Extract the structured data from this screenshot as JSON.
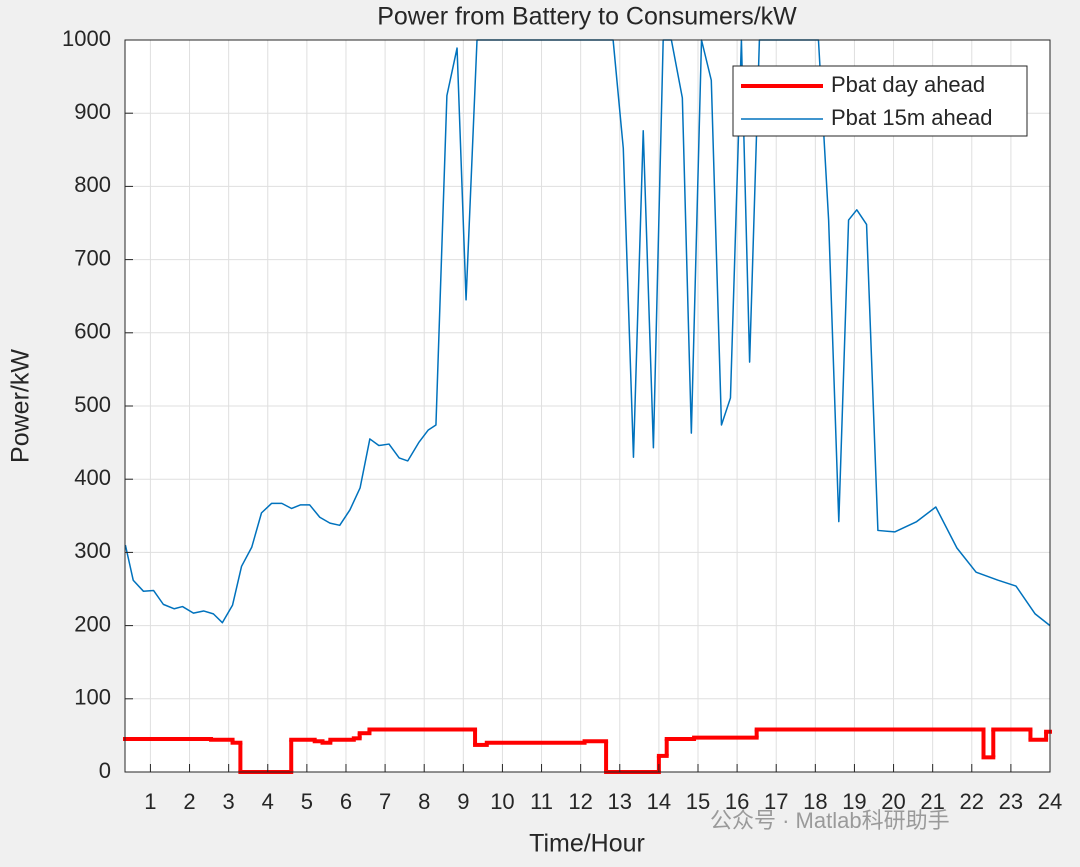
{
  "chart_data": {
    "type": "line",
    "title": "Power from Battery to Consumers/kW",
    "x_label": "Time/Hour",
    "y_label": "Power/kW",
    "annotation": "公众号 · Matlab科研助手",
    "xlim": [
      0.35,
      24
    ],
    "ylim": [
      0,
      1000
    ],
    "xticks": [
      1,
      2,
      3,
      4,
      5,
      6,
      7,
      8,
      9,
      10,
      11,
      12,
      13,
      14,
      15,
      16,
      17,
      18,
      19,
      20,
      21,
      22,
      23,
      24
    ],
    "yticks": [
      0,
      100,
      200,
      300,
      400,
      500,
      600,
      700,
      800,
      900,
      1000
    ],
    "grid": true,
    "legend": "top-right",
    "series": [
      {
        "name": "Pbat day ahead",
        "color": "#ff0000",
        "step": true,
        "x": [
          0.35,
          2.55,
          3.1,
          3.3,
          4.6,
          5.2,
          5.4,
          5.6,
          6.2,
          6.35,
          6.6,
          9.3,
          9.6,
          12.1,
          12.65,
          14.0,
          14.2,
          14.9,
          16.5,
          22.3,
          22.55,
          23.5,
          23.9
        ],
        "values": [
          45,
          44,
          40,
          0,
          44,
          42,
          40,
          44,
          46,
          53,
          58,
          37,
          40,
          42,
          0,
          22,
          45,
          47,
          58,
          20,
          58,
          44,
          55
        ]
      },
      {
        "name": "Pbat 15m ahead",
        "color": "#0072bd",
        "x": [
          0.36,
          0.56,
          0.82,
          1.08,
          1.33,
          1.61,
          1.82,
          2.1,
          2.36,
          2.61,
          2.84,
          3.1,
          3.33,
          3.59,
          3.84,
          4.1,
          4.36,
          4.61,
          4.84,
          5.07,
          5.33,
          5.59,
          5.84,
          6.1,
          6.36,
          6.61,
          6.84,
          7.1,
          7.36,
          7.58,
          7.86,
          8.1,
          8.3,
          8.58,
          8.84,
          9.07,
          9.35,
          12.83,
          13.09,
          13.35,
          13.6,
          13.86,
          14.11,
          14.32,
          14.6,
          14.83,
          15.09,
          15.34,
          15.6,
          15.83,
          16.11,
          16.32,
          16.57,
          18.08,
          18.34,
          18.6,
          18.85,
          19.06,
          19.31,
          19.6,
          20.03,
          20.59,
          21.08,
          21.62,
          22.11,
          22.67,
          23.13,
          23.62,
          24
        ],
        "values": [
          310,
          262,
          247,
          248,
          229,
          223,
          226,
          217,
          220,
          216,
          204,
          228,
          281,
          307,
          354,
          367,
          367,
          360,
          365,
          365,
          348,
          340,
          337,
          358,
          388,
          455,
          446,
          448,
          429,
          425,
          450,
          467,
          474,
          924,
          989,
          645,
          1000,
          1000,
          852,
          430,
          876,
          443,
          1000,
          1000,
          921,
          463,
          1000,
          945,
          474,
          511,
          1000,
          560,
          1000,
          1000,
          754,
          342,
          754,
          768,
          748,
          330,
          328,
          342,
          362,
          306,
          273,
          262,
          254,
          216,
          200
        ]
      }
    ]
  }
}
